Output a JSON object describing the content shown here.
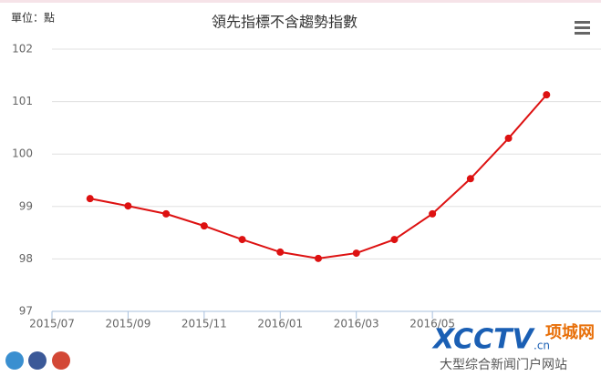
{
  "unit_label": "單位：點",
  "chart_data": {
    "type": "line",
    "title": "領先指標不含趨勢指數",
    "x": [
      "2015/08",
      "2015/09",
      "2015/10",
      "2015/11",
      "2015/12",
      "2016/01",
      "2016/02",
      "2016/03",
      "2016/04",
      "2016/05",
      "2016/06",
      "2016/07",
      "2016/08"
    ],
    "series": [
      {
        "name": "領先指標不含趨勢指數",
        "color": "#dd1111",
        "values": [
          99.15,
          99.01,
          98.86,
          98.63,
          98.37,
          98.13,
          98.01,
          98.11,
          98.37,
          98.86,
          99.53,
          100.3,
          101.13
        ]
      }
    ],
    "xlim": [
      "2015/07",
      "2016/09"
    ],
    "xticks": [
      "2015/07",
      "2015/09",
      "2015/11",
      "2016/01",
      "2016/03",
      "2016/05"
    ],
    "ylim": [
      97,
      102
    ],
    "yticks": [
      97,
      98,
      99,
      100,
      101,
      102
    ],
    "grid": true
  },
  "watermark": {
    "logo": "XCCTV",
    "suffix": ".cn",
    "site": "项城网",
    "slogan": "大型综合新闻门户网站"
  }
}
